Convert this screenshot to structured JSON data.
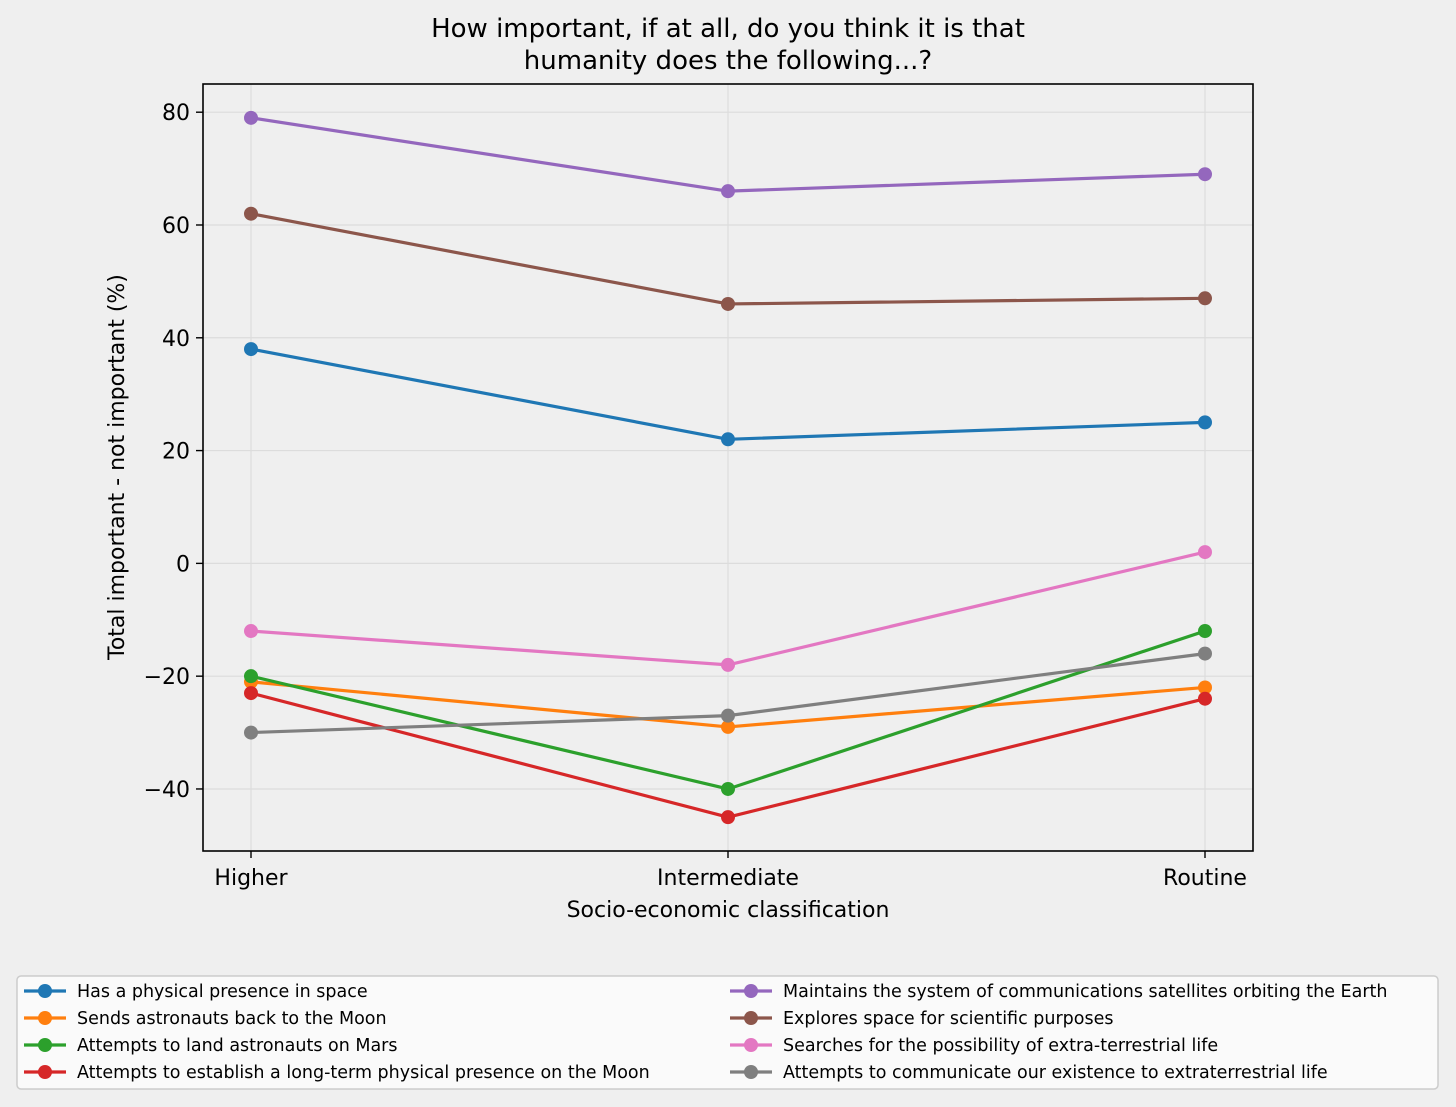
{
  "chart_data": {
    "type": "line",
    "title_lines": [
      "How important, if at all, do you think it is that",
      "humanity does the following...?"
    ],
    "xlabel": "Socio-economic classification",
    "ylabel": "Total important - not important (%)",
    "categories": [
      "Higher",
      "Intermediate",
      "Routine"
    ],
    "ylim": [
      -51,
      85
    ],
    "yticks": [
      -40,
      -20,
      0,
      20,
      40,
      60,
      80
    ],
    "ytick_labels": [
      "−40",
      "−20",
      "0",
      "20",
      "40",
      "60",
      "80"
    ],
    "grid": true,
    "legend_placement": "bottom",
    "series": [
      {
        "name": "Has a physical presence in space",
        "color": "#1f77b4",
        "values": [
          38,
          22,
          25
        ]
      },
      {
        "name": "Sends astronauts back to the Moon",
        "color": "#ff7f0e",
        "values": [
          -21,
          -29,
          -22
        ]
      },
      {
        "name": "Attempts to land astronauts on Mars",
        "color": "#2ca02c",
        "values": [
          -20,
          -40,
          -12
        ]
      },
      {
        "name": "Attempts to establish a long-term physical presence on the Moon",
        "color": "#d62728",
        "values": [
          -23,
          -45,
          -24
        ]
      },
      {
        "name": "Maintains the system of communications satellites orbiting the Earth",
        "color": "#9467bd",
        "values": [
          79,
          66,
          69
        ]
      },
      {
        "name": "Explores space for scientific purposes",
        "color": "#8c564b",
        "values": [
          62,
          46,
          47
        ]
      },
      {
        "name": "Searches for the possibility of extra-terrestrial life",
        "color": "#e377c2",
        "values": [
          -12,
          -18,
          2
        ]
      },
      {
        "name": "Attempts to communicate our existence to extraterrestrial life",
        "color": "#7f7f7f",
        "values": [
          -30,
          -27,
          -16
        ]
      }
    ]
  }
}
